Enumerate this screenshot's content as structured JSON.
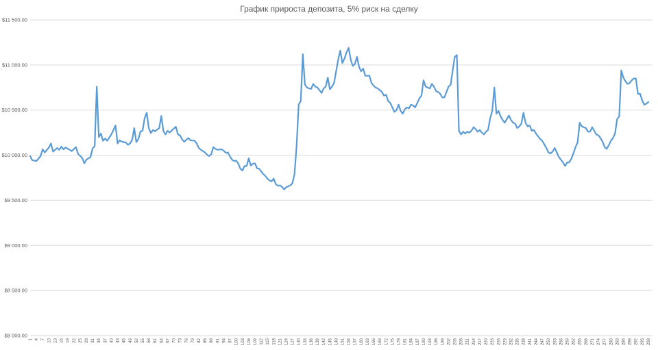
{
  "chart_data": {
    "type": "line",
    "title": "График прироста депозита, 5% риск на сделку",
    "xlabel": "",
    "ylabel": "",
    "ylim": [
      8000,
      11500
    ],
    "y_ticks": [
      "$8 000.00",
      "$8 500.00",
      "$9 000.00",
      "$9 500.00",
      "$10 000.00",
      "$10 500.00",
      "$11 000.00",
      "$11 500.00"
    ],
    "y_tick_values": [
      8000,
      8500,
      9000,
      9500,
      10000,
      10500,
      11000,
      11500
    ],
    "x_range": [
      1,
      300
    ],
    "x_tick_labels": [
      1,
      4,
      7,
      10,
      13,
      16,
      19,
      22,
      25,
      28,
      31,
      34,
      37,
      40,
      43,
      46,
      49,
      52,
      55,
      58,
      61,
      64,
      67,
      70,
      73,
      76,
      79,
      82,
      85,
      88,
      91,
      94,
      97,
      100,
      103,
      106,
      109,
      112,
      115,
      118,
      121,
      124,
      127,
      130,
      133,
      136,
      139,
      142,
      145,
      148,
      151,
      154,
      157,
      160,
      163,
      166,
      169,
      172,
      175,
      178,
      181,
      184,
      187,
      190,
      193,
      196,
      199,
      202,
      205,
      208,
      211,
      214,
      217,
      220,
      223,
      226,
      229,
      232,
      235,
      238,
      241,
      244,
      247,
      250,
      253,
      256,
      259,
      262,
      265,
      268,
      271,
      274,
      277,
      280,
      283,
      286,
      289,
      292,
      295,
      298
    ],
    "grid": true,
    "legend": "none",
    "series": [
      {
        "color": "#5b9bd5",
        "points": [
          [
            1,
            9990
          ],
          [
            2,
            9945
          ],
          [
            4,
            9935
          ],
          [
            6,
            9990
          ],
          [
            7,
            10065
          ],
          [
            8,
            10030
          ],
          [
            10,
            10085
          ],
          [
            11,
            10130
          ],
          [
            12,
            10040
          ],
          [
            14,
            10080
          ],
          [
            15,
            10060
          ],
          [
            16,
            10095
          ],
          [
            17,
            10065
          ],
          [
            18,
            10085
          ],
          [
            20,
            10060
          ],
          [
            21,
            10045
          ],
          [
            23,
            10090
          ],
          [
            24,
            10015
          ],
          [
            26,
            9970
          ],
          [
            27,
            9910
          ],
          [
            28,
            9950
          ],
          [
            30,
            9980
          ],
          [
            31,
            10075
          ],
          [
            32,
            10100
          ],
          [
            33,
            10760
          ],
          [
            34,
            10200
          ],
          [
            35,
            10240
          ],
          [
            36,
            10160
          ],
          [
            37,
            10185
          ],
          [
            38,
            10160
          ],
          [
            40,
            10230
          ],
          [
            42,
            10330
          ],
          [
            43,
            10130
          ],
          [
            44,
            10165
          ],
          [
            45,
            10150
          ],
          [
            47,
            10140
          ],
          [
            48,
            10115
          ],
          [
            49,
            10130
          ],
          [
            50,
            10170
          ],
          [
            51,
            10300
          ],
          [
            52,
            10145
          ],
          [
            53,
            10180
          ],
          [
            54,
            10265
          ],
          [
            55,
            10270
          ],
          [
            56,
            10410
          ],
          [
            57,
            10470
          ],
          [
            58,
            10300
          ],
          [
            59,
            10245
          ],
          [
            60,
            10280
          ],
          [
            61,
            10265
          ],
          [
            63,
            10300
          ],
          [
            64,
            10435
          ],
          [
            65,
            10270
          ],
          [
            66,
            10230
          ],
          [
            67,
            10270
          ],
          [
            68,
            10250
          ],
          [
            70,
            10295
          ],
          [
            71,
            10315
          ],
          [
            72,
            10230
          ],
          [
            73,
            10220
          ],
          [
            74,
            10175
          ],
          [
            75,
            10150
          ],
          [
            77,
            10190
          ],
          [
            78,
            10165
          ],
          [
            80,
            10160
          ],
          [
            81,
            10130
          ],
          [
            82,
            10080
          ],
          [
            83,
            10060
          ],
          [
            85,
            10030
          ],
          [
            86,
            10005
          ],
          [
            87,
            9990
          ],
          [
            88,
            10010
          ],
          [
            89,
            10090
          ],
          [
            90,
            10070
          ],
          [
            91,
            10060
          ],
          [
            93,
            10065
          ],
          [
            94,
            10050
          ],
          [
            95,
            10025
          ],
          [
            96,
            10030
          ],
          [
            97,
            9985
          ],
          [
            98,
            9950
          ],
          [
            99,
            9935
          ],
          [
            100,
            9940
          ],
          [
            101,
            9905
          ],
          [
            102,
            9850
          ],
          [
            103,
            9830
          ],
          [
            104,
            9880
          ],
          [
            105,
            9880
          ],
          [
            106,
            9965
          ],
          [
            107,
            9885
          ],
          [
            108,
            9905
          ],
          [
            109,
            9910
          ],
          [
            110,
            9855
          ],
          [
            111,
            9850
          ],
          [
            112,
            9820
          ],
          [
            113,
            9790
          ],
          [
            114,
            9770
          ],
          [
            115,
            9740
          ],
          [
            116,
            9720
          ],
          [
            117,
            9710
          ],
          [
            118,
            9740
          ],
          [
            119,
            9680
          ],
          [
            120,
            9660
          ],
          [
            121,
            9665
          ],
          [
            122,
            9650
          ],
          [
            123,
            9620
          ],
          [
            124,
            9645
          ],
          [
            125,
            9655
          ],
          [
            126,
            9665
          ],
          [
            127,
            9690
          ],
          [
            128,
            9790
          ],
          [
            129,
            10100
          ],
          [
            130,
            10560
          ],
          [
            131,
            10600
          ],
          [
            132,
            11120
          ],
          [
            133,
            10780
          ],
          [
            134,
            10750
          ],
          [
            135,
            10740
          ],
          [
            136,
            10735
          ],
          [
            137,
            10790
          ],
          [
            138,
            10760
          ],
          [
            139,
            10750
          ],
          [
            140,
            10720
          ],
          [
            141,
            10690
          ],
          [
            142,
            10740
          ],
          [
            143,
            10760
          ],
          [
            144,
            10860
          ],
          [
            145,
            10730
          ],
          [
            146,
            10760
          ],
          [
            147,
            10800
          ],
          [
            148,
            10930
          ],
          [
            149,
            11060
          ],
          [
            150,
            11160
          ],
          [
            151,
            11020
          ],
          [
            152,
            11070
          ],
          [
            153,
            11140
          ],
          [
            154,
            11190
          ],
          [
            155,
            11060
          ],
          [
            156,
            10990
          ],
          [
            157,
            11010
          ],
          [
            158,
            11090
          ],
          [
            159,
            10980
          ],
          [
            160,
            10930
          ],
          [
            161,
            10960
          ],
          [
            162,
            10880
          ],
          [
            163,
            10880
          ],
          [
            164,
            10880
          ],
          [
            165,
            10800
          ],
          [
            166,
            10770
          ],
          [
            167,
            10750
          ],
          [
            168,
            10740
          ],
          [
            169,
            10720
          ],
          [
            170,
            10700
          ],
          [
            171,
            10660
          ],
          [
            172,
            10670
          ],
          [
            173,
            10600
          ],
          [
            174,
            10580
          ],
          [
            175,
            10530
          ],
          [
            176,
            10480
          ],
          [
            177,
            10500
          ],
          [
            178,
            10560
          ],
          [
            179,
            10490
          ],
          [
            180,
            10460
          ],
          [
            181,
            10510
          ],
          [
            182,
            10530
          ],
          [
            183,
            10520
          ],
          [
            184,
            10560
          ],
          [
            185,
            10550
          ],
          [
            186,
            10530
          ],
          [
            187,
            10580
          ],
          [
            188,
            10630
          ],
          [
            189,
            10660
          ],
          [
            190,
            10830
          ],
          [
            191,
            10760
          ],
          [
            192,
            10750
          ],
          [
            193,
            10740
          ],
          [
            194,
            10790
          ],
          [
            195,
            10760
          ],
          [
            196,
            10710
          ],
          [
            197,
            10700
          ],
          [
            198,
            10680
          ],
          [
            199,
            10640
          ],
          [
            200,
            10640
          ],
          [
            201,
            10700
          ],
          [
            202,
            10760
          ],
          [
            203,
            10780
          ],
          [
            204,
            10940
          ],
          [
            205,
            11090
          ],
          [
            206,
            11110
          ],
          [
            207,
            10270
          ],
          [
            208,
            10230
          ],
          [
            209,
            10260
          ],
          [
            210,
            10240
          ],
          [
            211,
            10260
          ],
          [
            212,
            10250
          ],
          [
            213,
            10270
          ],
          [
            214,
            10310
          ],
          [
            215,
            10290
          ],
          [
            216,
            10260
          ],
          [
            217,
            10280
          ],
          [
            218,
            10250
          ],
          [
            219,
            10230
          ],
          [
            220,
            10260
          ],
          [
            221,
            10280
          ],
          [
            222,
            10410
          ],
          [
            223,
            10490
          ],
          [
            224,
            10750
          ],
          [
            225,
            10460
          ],
          [
            226,
            10490
          ],
          [
            227,
            10430
          ],
          [
            228,
            10390
          ],
          [
            229,
            10360
          ],
          [
            230,
            10400
          ],
          [
            231,
            10440
          ],
          [
            232,
            10390
          ],
          [
            233,
            10360
          ],
          [
            234,
            10350
          ],
          [
            235,
            10300
          ],
          [
            236,
            10320
          ],
          [
            237,
            10350
          ],
          [
            238,
            10470
          ],
          [
            239,
            10360
          ],
          [
            240,
            10320
          ],
          [
            241,
            10330
          ],
          [
            242,
            10270
          ],
          [
            243,
            10280
          ],
          [
            244,
            10240
          ],
          [
            245,
            10210
          ],
          [
            246,
            10180
          ],
          [
            247,
            10160
          ],
          [
            248,
            10120
          ],
          [
            249,
            10080
          ],
          [
            250,
            10030
          ],
          [
            251,
            10020
          ],
          [
            252,
            10040
          ],
          [
            253,
            10080
          ],
          [
            254,
            10030
          ],
          [
            255,
            9980
          ],
          [
            256,
            9950
          ],
          [
            257,
            9920
          ],
          [
            258,
            9880
          ],
          [
            259,
            9920
          ],
          [
            260,
            9920
          ],
          [
            261,
            9960
          ],
          [
            262,
            10020
          ],
          [
            263,
            10090
          ],
          [
            264,
            10140
          ],
          [
            265,
            10360
          ],
          [
            266,
            10320
          ],
          [
            267,
            10310
          ],
          [
            268,
            10300
          ],
          [
            269,
            10260
          ],
          [
            270,
            10260
          ],
          [
            271,
            10310
          ],
          [
            272,
            10270
          ],
          [
            273,
            10230
          ],
          [
            274,
            10220
          ],
          [
            275,
            10190
          ],
          [
            276,
            10150
          ],
          [
            277,
            10090
          ],
          [
            278,
            10070
          ],
          [
            279,
            10110
          ],
          [
            280,
            10160
          ],
          [
            281,
            10190
          ],
          [
            282,
            10240
          ],
          [
            283,
            10400
          ],
          [
            284,
            10430
          ],
          [
            285,
            10940
          ],
          [
            286,
            10860
          ],
          [
            287,
            10820
          ],
          [
            288,
            10790
          ],
          [
            289,
            10800
          ],
          [
            290,
            10830
          ],
          [
            291,
            10850
          ],
          [
            292,
            10850
          ],
          [
            293,
            10680
          ],
          [
            294,
            10680
          ],
          [
            295,
            10610
          ],
          [
            296,
            10560
          ],
          [
            297,
            10570
          ],
          [
            298,
            10590
          ]
        ]
      }
    ]
  }
}
